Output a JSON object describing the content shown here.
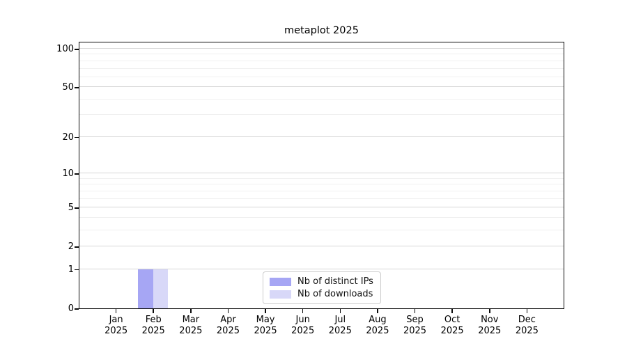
{
  "chart_data": {
    "type": "bar",
    "title": "metaplot 2025",
    "xlabel": "",
    "ylabel": "",
    "y_scale": "log1p",
    "grid": "horizontal-both-major-and-minor",
    "y_ticks": [
      0,
      1,
      2,
      5,
      10,
      20,
      50,
      100
    ],
    "y_minor_gridlines": [
      3,
      4,
      6,
      7,
      8,
      9,
      30,
      40,
      60,
      70,
      80,
      90
    ],
    "ylim_top_approx": 115,
    "categories": [
      {
        "month": "Jan",
        "year": "2025"
      },
      {
        "month": "Feb",
        "year": "2025"
      },
      {
        "month": "Mar",
        "year": "2025"
      },
      {
        "month": "Apr",
        "year": "2025"
      },
      {
        "month": "May",
        "year": "2025"
      },
      {
        "month": "Jun",
        "year": "2025"
      },
      {
        "month": "Jul",
        "year": "2025"
      },
      {
        "month": "Aug",
        "year": "2025"
      },
      {
        "month": "Sep",
        "year": "2025"
      },
      {
        "month": "Oct",
        "year": "2025"
      },
      {
        "month": "Nov",
        "year": "2025"
      },
      {
        "month": "Dec",
        "year": "2025"
      }
    ],
    "series": [
      {
        "name": "Nb of distinct IPs",
        "color": "#a6a6f4",
        "values": [
          0,
          1,
          0,
          0,
          0,
          0,
          0,
          0,
          0,
          0,
          0,
          0
        ]
      },
      {
        "name": "Nb of downloads",
        "color": "#d8d8f8",
        "values": [
          0,
          1,
          0,
          0,
          0,
          0,
          0,
          0,
          0,
          0,
          0,
          0
        ]
      }
    ],
    "legend": {
      "position": "inside-bottom-center",
      "border_color": "#cccccc"
    },
    "axis_color": "#0a0a0a",
    "background_color": "#ffffff"
  }
}
